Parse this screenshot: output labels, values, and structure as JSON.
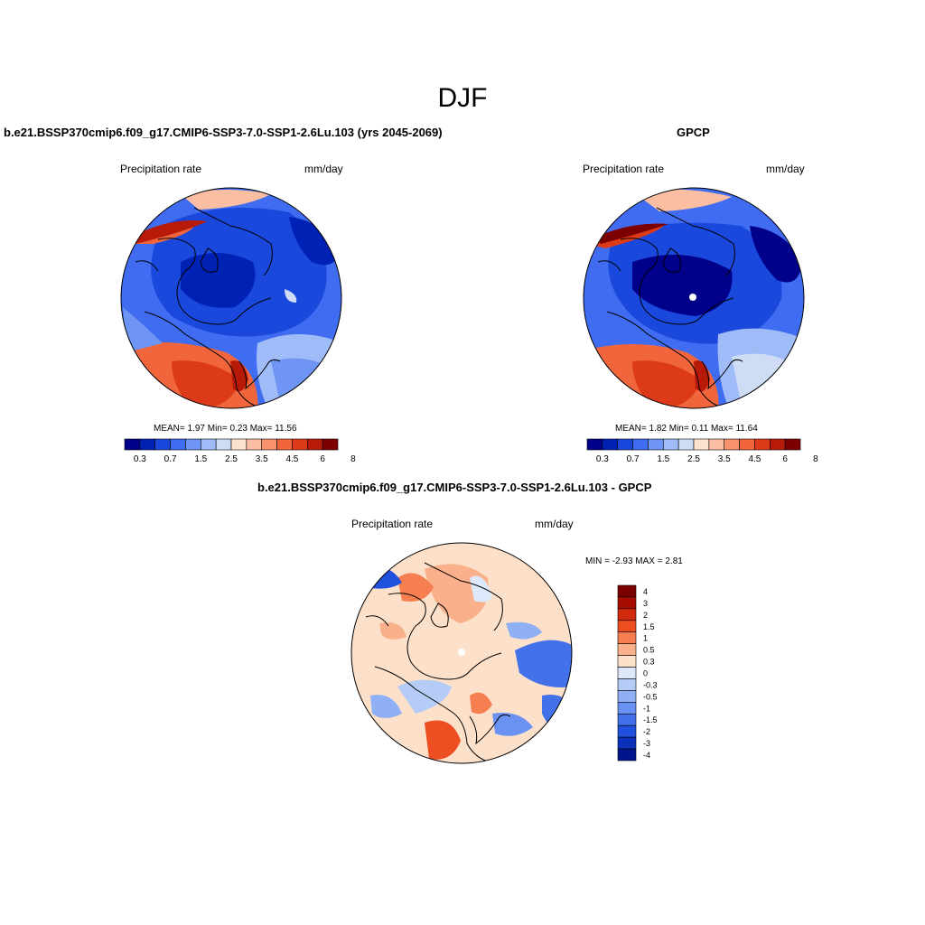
{
  "figure": {
    "title": "DJF"
  },
  "panels": {
    "model": {
      "title": "b.e21.BSSP370cmip6.f09_g17.CMIP6-SSP3-7.0-SSP1-2.6Lu.103 (yrs 2045-2069)",
      "left_label": "Precipitation rate",
      "right_label": "mm/day",
      "stats": "MEAN=   1.97  Min=    0.23  Max=  11.56",
      "colorbar_ticks": [
        "0.3",
        "0.7",
        "1.5",
        "2.5",
        "3.5",
        "4.5",
        "6",
        "8"
      ]
    },
    "obs": {
      "title": "GPCP",
      "left_label": "Precipitation rate",
      "right_label": "mm/day",
      "stats": "MEAN=   1.82  Min=    0.11  Max=  11.64",
      "colorbar_ticks": [
        "0.3",
        "0.7",
        "1.5",
        "2.5",
        "3.5",
        "4.5",
        "6",
        "8"
      ]
    },
    "diff": {
      "title": "b.e21.BSSP370cmip6.f09_g17.CMIP6-SSP3-7.0-SSP1-2.6Lu.103 - GPCP",
      "left_label": "Precipitation rate",
      "right_label": "mm/day",
      "stats": "MIN =  -2.93 MAX =   2.81",
      "colorbar_ticks": [
        "4",
        "3",
        "2",
        "1.5",
        "1",
        "0.5",
        "0.3",
        "0",
        "-0.3",
        "-0.5",
        "-1",
        "-1.5",
        "-2",
        "-3",
        "-4"
      ]
    }
  },
  "colors": {
    "abs_scale": [
      "#00008a",
      "#0022b4",
      "#1a48dc",
      "#3f6cf0",
      "#6e94f4",
      "#9fbcf8",
      "#cfdcf6",
      "#fde3cf",
      "#fbbea2",
      "#f7926d",
      "#f1653d",
      "#dc3a18",
      "#b81a0a",
      "#7d0000"
    ],
    "diff_scale": [
      "#7d0000",
      "#a80c00",
      "#d22a0c",
      "#ee4f22",
      "#f67f52",
      "#fab08b",
      "#fde0c9",
      "#dde8fa",
      "#b4ccf6",
      "#8fb0f4",
      "#6a92f2",
      "#4271ea",
      "#2050dc",
      "#0a30bc",
      "#00148e"
    ]
  }
}
